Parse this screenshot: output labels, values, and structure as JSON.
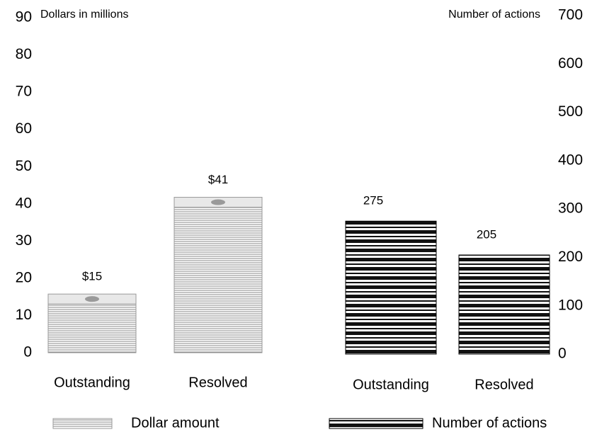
{
  "chart_data": [
    {
      "type": "bar",
      "ylabel": "Dollars in millions",
      "axis_side": "left",
      "marker": "bills",
      "categories": [
        "Outstanding",
        "Resolved"
      ],
      "series": [
        {
          "name": "Dollar amount",
          "color": "#9a9a9a",
          "values": [
            15,
            41
          ],
          "value_labels": [
            "$15",
            "$41"
          ]
        }
      ],
      "ylim": [
        0,
        90
      ],
      "yticks": [
        0,
        10,
        20,
        30,
        40,
        50,
        60,
        70,
        80,
        90
      ]
    },
    {
      "type": "bar",
      "ylabel": "Number of actions",
      "axis_side": "right",
      "marker": "books",
      "categories": [
        "Outstanding",
        "Resolved"
      ],
      "series": [
        {
          "name": "Number of actions",
          "color": "#000000",
          "values": [
            275,
            205
          ]
        }
      ],
      "ylim": [
        0,
        700
      ],
      "yticks": [
        0,
        100,
        200,
        300,
        400,
        500,
        600,
        700
      ]
    }
  ]
}
